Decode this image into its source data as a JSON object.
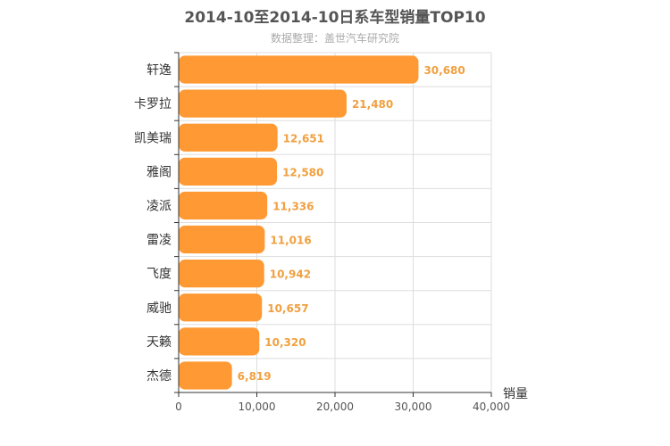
{
  "chart_data": {
    "type": "bar",
    "orientation": "horizontal",
    "title": "2014-10至2014-10日系车型销量TOP10",
    "subtitle": "数据整理：盖世汽车研究院",
    "xlabel": "销量",
    "ylabel": "",
    "categories": [
      "轩逸",
      "卡罗拉",
      "凯美瑞",
      "雅阁",
      "凌派",
      "雷凌",
      "飞度",
      "威驰",
      "天籁",
      "杰德"
    ],
    "values": [
      30680,
      21480,
      12651,
      12580,
      11336,
      11016,
      10942,
      10657,
      10320,
      6819
    ],
    "value_labels": [
      "30,680",
      "21,480",
      "12,651",
      "12,580",
      "11,336",
      "11,016",
      "10,942",
      "10,657",
      "10,320",
      "6,819"
    ],
    "xlim": [
      0,
      40000
    ],
    "x_ticks": [
      0,
      10000,
      20000,
      30000,
      40000
    ],
    "x_tick_labels": [
      "0",
      "10,000",
      "20,000",
      "30,000",
      "40,000"
    ],
    "grid": true,
    "bar_color": "#ff9933",
    "value_label_color": "#f0a040",
    "grid_color": "#dddddd"
  }
}
